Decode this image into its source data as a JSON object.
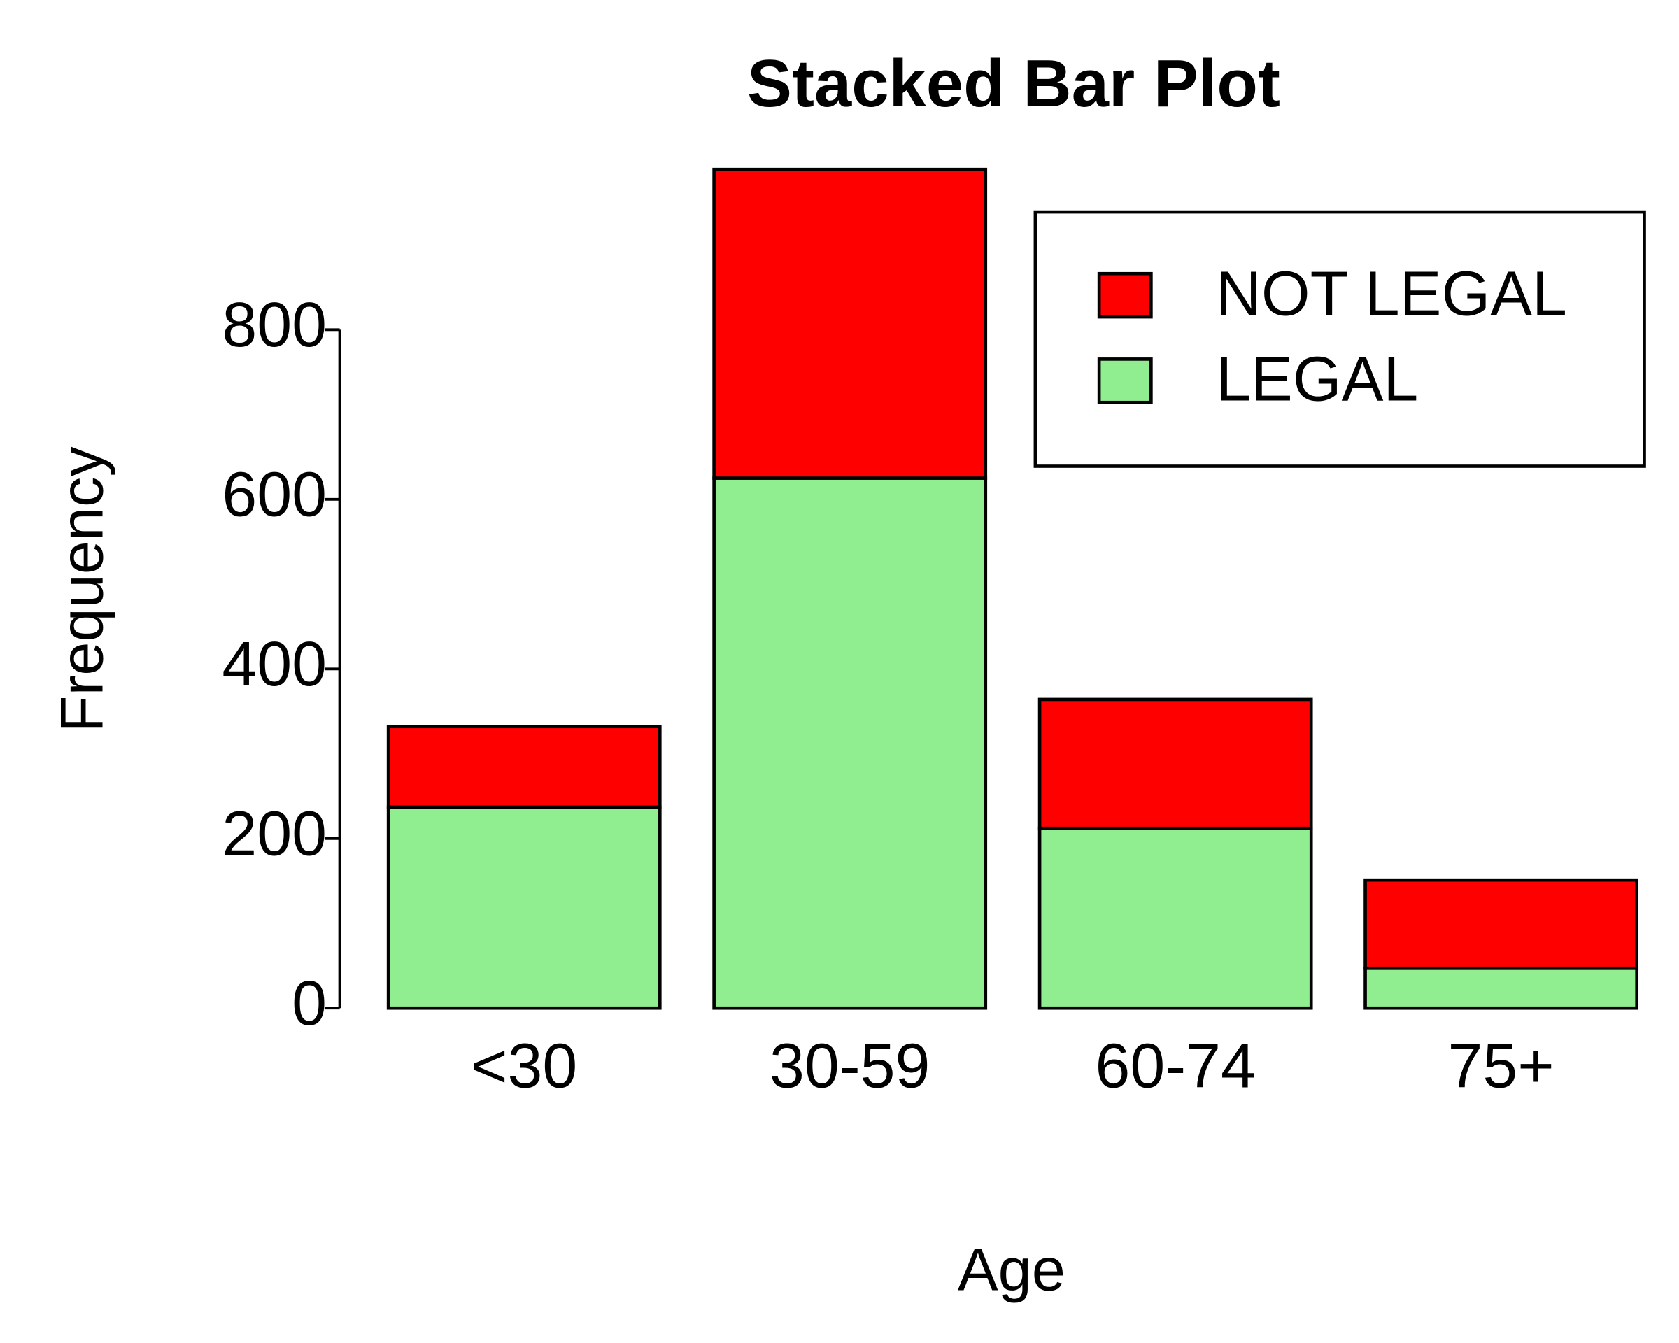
{
  "chart_data": {
    "type": "stacked_bar",
    "title": "Stacked Bar Plot",
    "x_label": "Age",
    "y_label": "Frequency",
    "categories": [
      "<30",
      "30-59",
      "60-74",
      "75+"
    ],
    "series": [
      {
        "name": "LEGAL",
        "color": "#90ee90",
        "values": [
          237,
          625,
          212,
          47
        ]
      },
      {
        "name": "NOT LEGAL",
        "color": "#ff0000",
        "values": [
          95,
          364,
          152,
          104
        ]
      }
    ],
    "ylim": [
      0,
      1000
    ],
    "yticks": [
      0,
      200,
      400,
      600,
      800
    ],
    "legend": "top-right"
  }
}
